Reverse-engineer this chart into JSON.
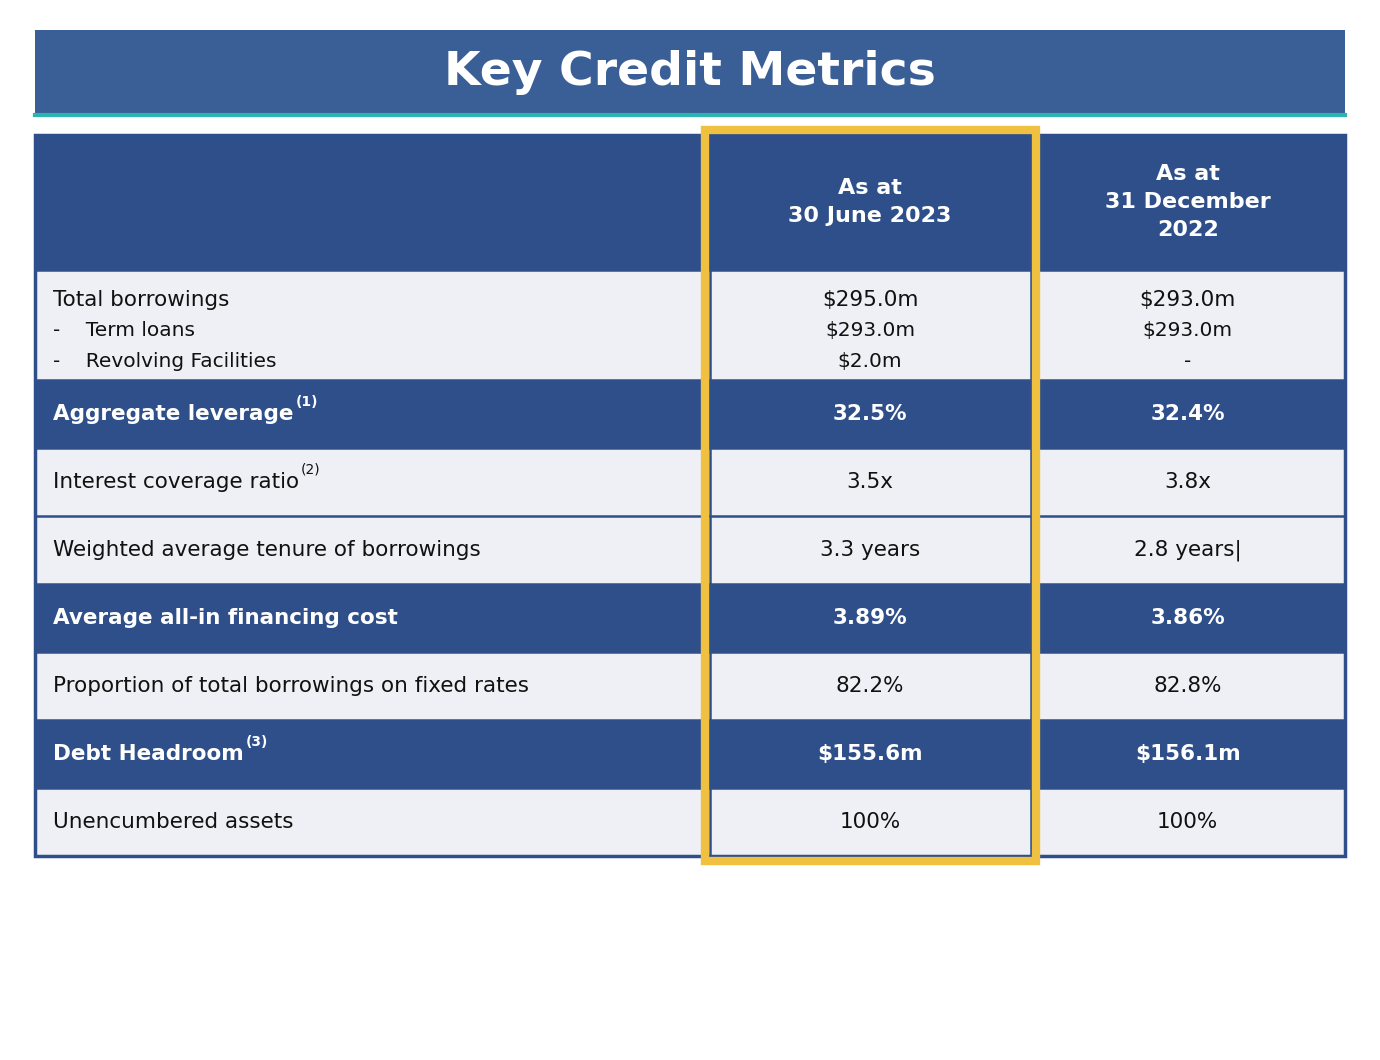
{
  "title": "Key Credit Metrics",
  "title_bg": "#3a5e96",
  "title_color": "#ffffff",
  "title_fontsize": 34,
  "header_bg": "#2e4f8a",
  "header_color": "#ffffff",
  "dark_row_bg": "#2e4f8a",
  "dark_row_color": "#ffffff",
  "light_row_bg": "#eef0f5",
  "light_row_color": "#111111",
  "highlight_border": "#f0c040",
  "outer_border_color": "#2e4f8a",
  "grid_color": "#2e4f8a",
  "col2_header": "As at\n30 June 2023",
  "col3_header": "As at\n31 December\n2022",
  "rows": [
    {
      "lines": [
        "Total borrowings",
        "-    Term loans",
        "-    Revolving Facilities"
      ],
      "col2_lines": [
        "$295.0m",
        "$293.0m",
        "$2.0m"
      ],
      "col3_lines": [
        "$293.0m",
        "$293.0m",
        "-"
      ],
      "style": "light",
      "bold": false,
      "multiline": true
    },
    {
      "label": "Aggregate leverage",
      "sup": "(1)",
      "col2": "32.5%",
      "col3": "32.4%",
      "style": "dark",
      "bold": true,
      "multiline": false
    },
    {
      "label": "Interest coverage ratio",
      "sup": "(2)",
      "col2": "3.5x",
      "col3": "3.8x",
      "style": "light",
      "bold": false,
      "multiline": false
    },
    {
      "label": "Weighted average tenure of borrowings",
      "col2": "3.3 years",
      "col3": "2.8 years|",
      "style": "light",
      "bold": false,
      "multiline": false
    },
    {
      "label": "Average all-in financing cost",
      "col2": "3.89%",
      "col3": "3.86%",
      "style": "dark",
      "bold": true,
      "multiline": false
    },
    {
      "label": "Proportion of total borrowings on fixed rates",
      "col2": "82.2%",
      "col3": "82.8%",
      "style": "light",
      "bold": false,
      "multiline": false
    },
    {
      "label": "Debt Headroom",
      "sup": "(3)",
      "col2": "$155.6m",
      "col3": "$156.1m",
      "style": "dark",
      "bold": true,
      "multiline": false
    },
    {
      "label": "Unencumbered assets",
      "col2": "100%",
      "col3": "100%",
      "style": "light",
      "bold": false,
      "multiline": false
    }
  ]
}
